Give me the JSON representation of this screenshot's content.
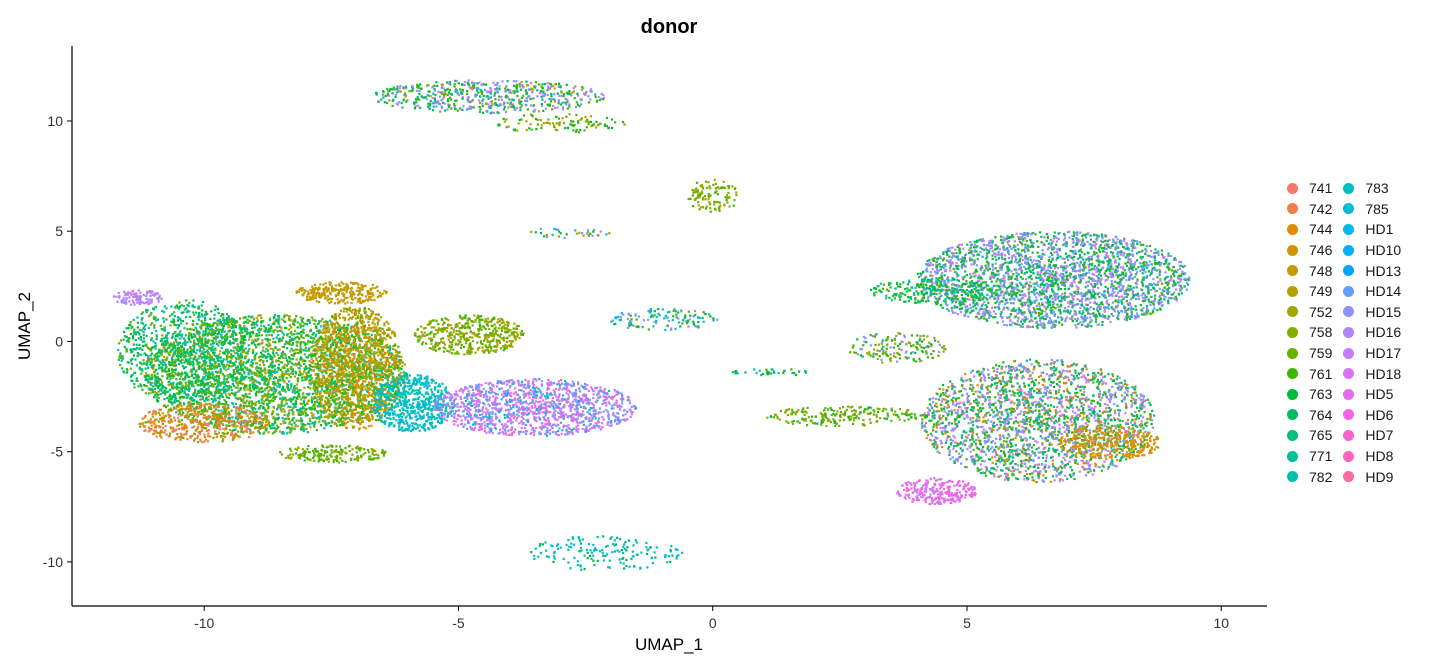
{
  "chart_data": {
    "type": "scatter",
    "title": "donor",
    "xlabel": "UMAP_1",
    "ylabel": "UMAP_2",
    "xlim": [
      -12.6,
      10.9
    ],
    "ylim": [
      -12.0,
      13.4
    ],
    "xticks": [
      -10,
      -5,
      0,
      5,
      10
    ],
    "yticks": [
      -10,
      -5,
      0,
      5,
      10
    ],
    "grid": false,
    "legend_position": "right",
    "legend": [
      {
        "name": "741",
        "color": "#F8766D"
      },
      {
        "name": "742",
        "color": "#EE7F48"
      },
      {
        "name": "744",
        "color": "#E28A00"
      },
      {
        "name": "746",
        "color": "#D39200"
      },
      {
        "name": "748",
        "color": "#C49A00"
      },
      {
        "name": "749",
        "color": "#B2A100"
      },
      {
        "name": "752",
        "color": "#9EA700"
      },
      {
        "name": "758",
        "color": "#86AC00"
      },
      {
        "name": "759",
        "color": "#69B100"
      },
      {
        "name": "761",
        "color": "#3EB600"
      },
      {
        "name": "763",
        "color": "#00BA38"
      },
      {
        "name": "764",
        "color": "#00BC5F"
      },
      {
        "name": "765",
        "color": "#00BF7D"
      },
      {
        "name": "771",
        "color": "#00C097"
      },
      {
        "name": "782",
        "color": "#00C0AE"
      },
      {
        "name": "783",
        "color": "#00BFC4"
      },
      {
        "name": "785",
        "color": "#00BCD8"
      },
      {
        "name": "HD1",
        "color": "#00B7E9"
      },
      {
        "name": "HD10",
        "color": "#00B0F6"
      },
      {
        "name": "HD13",
        "color": "#00A5FF"
      },
      {
        "name": "HD14",
        "color": "#619CFF"
      },
      {
        "name": "HD15",
        "color": "#8F91FF"
      },
      {
        "name": "HD16",
        "color": "#AE87FF"
      },
      {
        "name": "HD17",
        "color": "#C77CFF"
      },
      {
        "name": "HD18",
        "color": "#DB72FB"
      },
      {
        "name": "HD5",
        "color": "#EA6AEE"
      },
      {
        "name": "HD6",
        "color": "#F564E3"
      },
      {
        "name": "HD7",
        "color": "#FC61D4"
      },
      {
        "name": "HD8",
        "color": "#FF63C2"
      },
      {
        "name": "HD9",
        "color": "#FF68A0"
      }
    ],
    "clusters": [
      {
        "name": "left-mass-core",
        "cx": -8.6,
        "cy": -1.5,
        "rx": 2.6,
        "ry": 2.7,
        "weight": 9000,
        "mix": [
          "761",
          "763",
          "759",
          "764",
          "765",
          "782",
          "752",
          "749"
        ]
      },
      {
        "name": "left-mass-west",
        "cx": -10.4,
        "cy": -0.5,
        "rx": 1.3,
        "ry": 2.4,
        "weight": 2600,
        "mix": [
          "763",
          "764",
          "759",
          "782",
          "765"
        ]
      },
      {
        "name": "left-mass-southwest",
        "cx": -10.0,
        "cy": -3.7,
        "rx": 1.3,
        "ry": 0.9,
        "weight": 1400,
        "mix": [
          "742",
          "744",
          "746",
          "741",
          "759"
        ]
      },
      {
        "name": "left-tip",
        "cx": -11.3,
        "cy": 2.0,
        "rx": 0.5,
        "ry": 0.35,
        "weight": 300,
        "mix": [
          "HD16",
          "HD17",
          "HD15",
          "HD18"
        ]
      },
      {
        "name": "left-tail-south",
        "cx": -7.5,
        "cy": -5.1,
        "rx": 1.1,
        "ry": 0.4,
        "weight": 500,
        "mix": [
          "759",
          "761",
          "752"
        ]
      },
      {
        "name": "orange-band",
        "cx": -7.0,
        "cy": -1.2,
        "rx": 0.9,
        "ry": 2.8,
        "weight": 3500,
        "mix": [
          "746",
          "748",
          "749",
          "744",
          "752",
          "761"
        ]
      },
      {
        "name": "orange-top",
        "cx": -7.3,
        "cy": 2.2,
        "rx": 0.9,
        "ry": 0.5,
        "weight": 700,
        "mix": [
          "748",
          "749",
          "746"
        ]
      },
      {
        "name": "cyan-band",
        "cx": -5.9,
        "cy": -2.8,
        "rx": 0.8,
        "ry": 1.3,
        "weight": 1700,
        "mix": [
          "783",
          "785",
          "782",
          "HD1",
          "771"
        ]
      },
      {
        "name": "olive-bulge",
        "cx": -4.8,
        "cy": 0.3,
        "rx": 1.1,
        "ry": 0.9,
        "weight": 1300,
        "mix": [
          "758",
          "759",
          "752",
          "761",
          "749"
        ]
      },
      {
        "name": "purple-lobe",
        "cx": -3.5,
        "cy": -3.0,
        "rx": 2.0,
        "ry": 1.3,
        "weight": 3600,
        "mix": [
          "HD15",
          "HD16",
          "HD17",
          "HD18",
          "HD5",
          "HD6",
          "HD14",
          "785"
        ]
      },
      {
        "name": "top-island",
        "cx": -4.4,
        "cy": 11.1,
        "rx": 2.3,
        "ry": 0.75,
        "weight": 1700,
        "mix": [
          "763",
          "764",
          "765",
          "HD16",
          "HD17",
          "749",
          "761",
          "HD14"
        ]
      },
      {
        "name": "top-island-tail",
        "cx": -3.0,
        "cy": 9.9,
        "rx": 1.3,
        "ry": 0.45,
        "weight": 300,
        "mix": [
          "749",
          "763",
          "761",
          "758"
        ]
      },
      {
        "name": "small-upper-middle",
        "cx": 0.0,
        "cy": 6.6,
        "rx": 0.5,
        "ry": 0.8,
        "weight": 300,
        "mix": [
          "758",
          "759",
          "749",
          "761"
        ]
      },
      {
        "name": "small-upper-arc",
        "cx": -2.9,
        "cy": 4.9,
        "rx": 0.9,
        "ry": 0.25,
        "weight": 100,
        "mix": [
          "783",
          "763",
          "752",
          "HD15"
        ]
      },
      {
        "name": "central-blob",
        "cx": -1.0,
        "cy": 1.0,
        "rx": 1.1,
        "ry": 0.5,
        "weight": 350,
        "mix": [
          "763",
          "783",
          "HD15",
          "761",
          "785"
        ]
      },
      {
        "name": "bottom-hook",
        "cx": -2.1,
        "cy": -9.6,
        "rx": 1.5,
        "ry": 0.8,
        "weight": 450,
        "mix": [
          "783",
          "785",
          "HD1",
          "782",
          "763"
        ]
      },
      {
        "name": "right-upper-mass",
        "cx": 6.7,
        "cy": 2.8,
        "rx": 2.7,
        "ry": 2.2,
        "weight": 7500,
        "mix": [
          "763",
          "764",
          "HD15",
          "HD16",
          "HD17",
          "761",
          "HD14",
          "765"
        ]
      },
      {
        "name": "right-upper-arm",
        "cx": 4.4,
        "cy": 2.3,
        "rx": 1.3,
        "ry": 0.6,
        "weight": 700,
        "mix": [
          "763",
          "764",
          "761",
          "782"
        ]
      },
      {
        "name": "right-lower-mass",
        "cx": 6.4,
        "cy": -3.6,
        "rx": 2.3,
        "ry": 2.8,
        "weight": 6600,
        "mix": [
          "763",
          "764",
          "761",
          "HD16",
          "HD17",
          "744",
          "HD15",
          "765"
        ]
      },
      {
        "name": "right-lower-orange",
        "cx": 7.8,
        "cy": -4.6,
        "rx": 1.0,
        "ry": 0.8,
        "weight": 900,
        "mix": [
          "744",
          "746",
          "748"
        ]
      },
      {
        "name": "right-bottom-pink",
        "cx": 4.4,
        "cy": -6.8,
        "rx": 0.8,
        "ry": 0.6,
        "weight": 700,
        "mix": [
          "HD5",
          "HD6",
          "HD7",
          "HD18",
          "HD17"
        ]
      },
      {
        "name": "right-west-arm",
        "cx": 2.6,
        "cy": -3.4,
        "rx": 1.6,
        "ry": 0.45,
        "weight": 600,
        "mix": [
          "759",
          "763",
          "761",
          "758",
          "752"
        ]
      },
      {
        "name": "right-middle-sparse",
        "cx": 3.6,
        "cy": -0.3,
        "rx": 1.0,
        "ry": 0.7,
        "weight": 450,
        "mix": [
          "763",
          "752",
          "761",
          "HD15"
        ]
      },
      {
        "name": "right-center-line",
        "cx": 1.2,
        "cy": -1.4,
        "rx": 0.8,
        "ry": 0.15,
        "weight": 100,
        "mix": [
          "763",
          "783",
          "761"
        ]
      }
    ]
  }
}
